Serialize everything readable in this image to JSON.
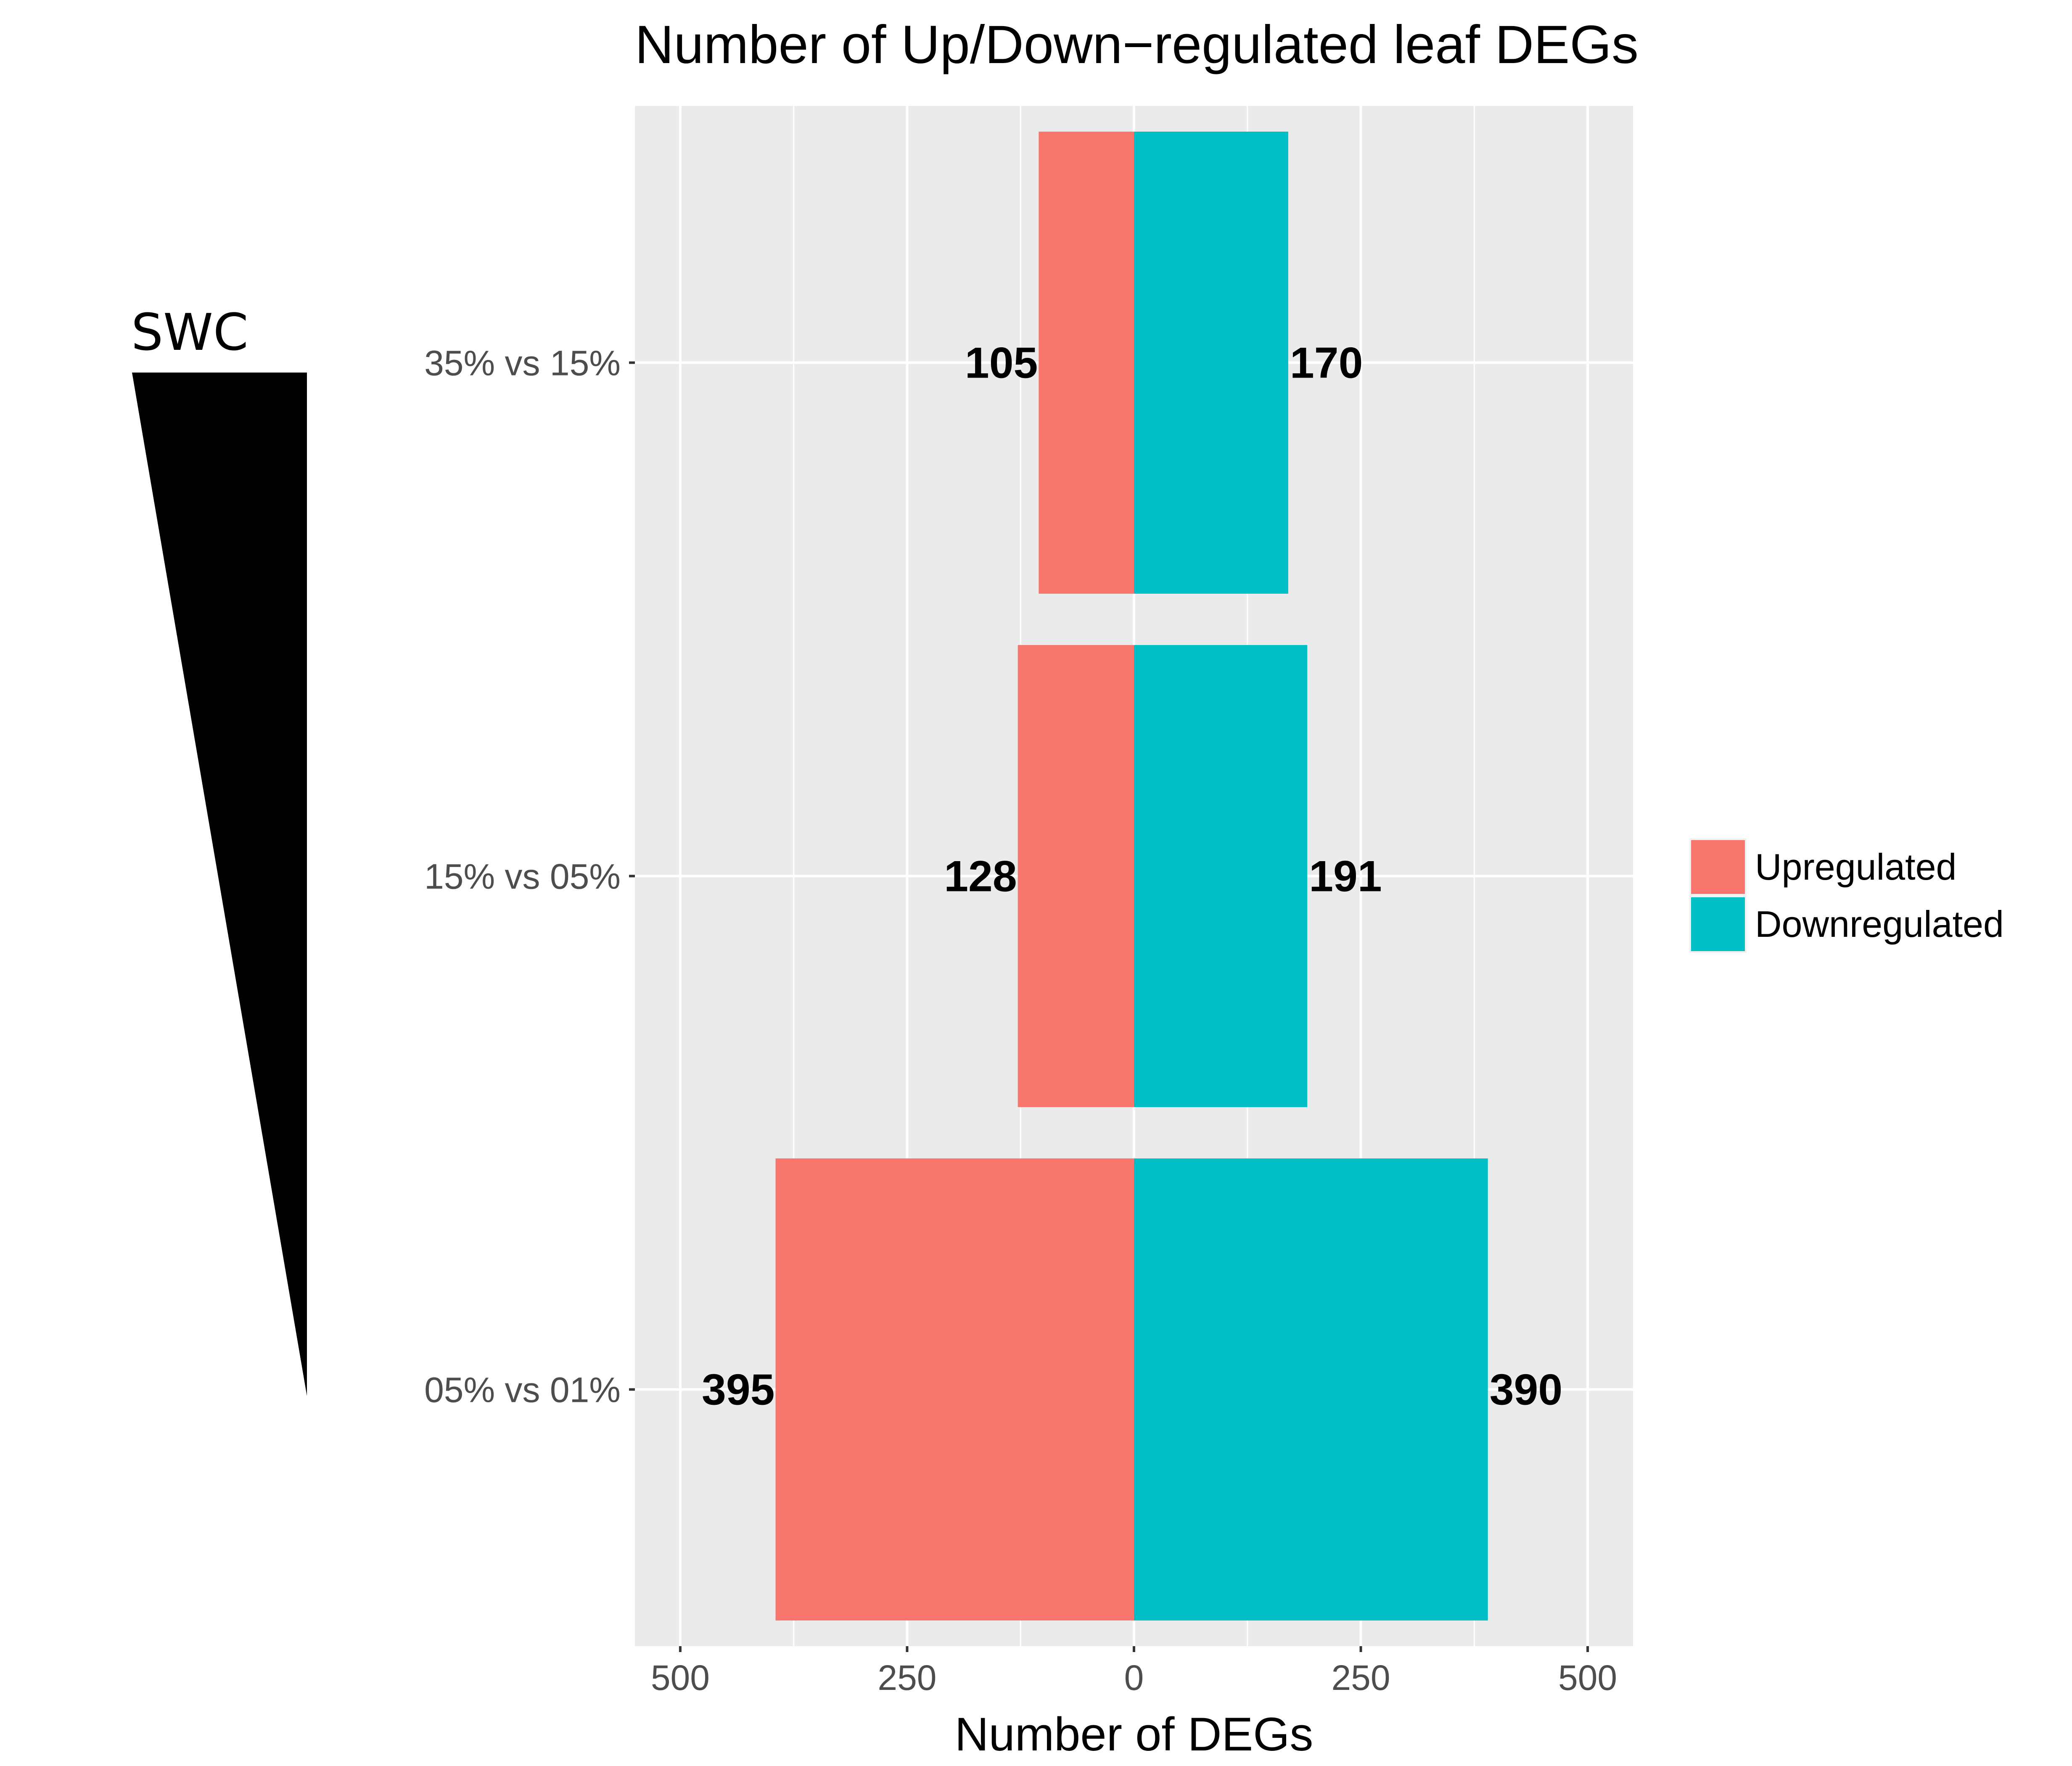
{
  "chart_data": {
    "type": "bar",
    "orientation": "horizontal-diverging",
    "title": "Number of Up/Down−regulated leaf DEGs",
    "xlabel": "Number of DEGs",
    "ylabel": "",
    "categories": [
      "05% vs 01%",
      "15% vs 05%",
      "35% vs 15%"
    ],
    "series": [
      {
        "name": "Upregulated",
        "direction": "left",
        "color": "#F8766D",
        "values": [
          395,
          128,
          105
        ]
      },
      {
        "name": "Downregulated",
        "direction": "right",
        "color": "#00BFC4",
        "values": [
          390,
          191,
          170
        ]
      }
    ],
    "xlim": [
      -550,
      550
    ],
    "x_ticks": [
      -500,
      -250,
      0,
      250,
      500
    ],
    "x_tick_labels": [
      "500",
      "250",
      "0",
      "250",
      "500"
    ],
    "grid": true,
    "legend": {
      "position": "right",
      "entries": [
        "Upregulated",
        "Downregulated"
      ]
    },
    "annotation": {
      "label": "SWC",
      "shape": "decreasing-wedge"
    }
  }
}
